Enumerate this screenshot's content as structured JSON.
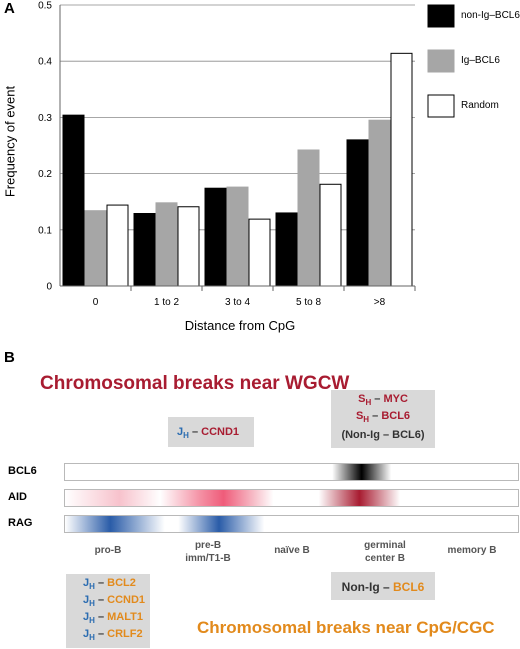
{
  "panelA": {
    "letter": "A",
    "chart_data": {
      "type": "bar",
      "categories": [
        "0",
        "1 to 2",
        "3 to 4",
        "5 to 8",
        ">8"
      ],
      "series": [
        {
          "name": "non-Ig–BCL6",
          "color": "#000000",
          "values": [
            0.304,
            0.129,
            0.174,
            0.13,
            0.26
          ]
        },
        {
          "name": "Ig–BCL6",
          "color": "#a6a6a6",
          "values": [
            0.134,
            0.148,
            0.176,
            0.242,
            0.295
          ]
        },
        {
          "name": "Random",
          "color": "#ffffff",
          "values": [
            0.144,
            0.141,
            0.119,
            0.181,
            0.414
          ]
        }
      ],
      "ylim": [
        0,
        0.5
      ],
      "yticks": [
        "0",
        "0.1",
        "0.2",
        "0.3",
        "0.4",
        "0.5"
      ],
      "xlabel": "Distance from CpG",
      "ylabel": "Frequency of event",
      "grid": true,
      "legend_position": "right"
    }
  },
  "panelB": {
    "letter": "B",
    "title_top": "Chromosomal breaks near WGCW",
    "title_bottom": "Chromosomal breaks near CpG/CGC",
    "tracks": [
      "BCL6",
      "AID",
      "RAG"
    ],
    "stages": [
      "pro-B",
      "pre-B imm/T1-B",
      "naïve B",
      "germinal center B",
      "memory B"
    ],
    "top_box_jh": {
      "jh": "J",
      "sub": "H",
      "dash": " – ",
      "gene": "CCND1"
    },
    "top_box_sh": [
      {
        "s": "S",
        "sub": "H",
        "dash": " – ",
        "gene": "MYC"
      },
      {
        "s": "S",
        "sub": "H",
        "dash": " – ",
        "gene": "BCL6"
      },
      {
        "text": "(Non-Ig – BCL6)"
      }
    ],
    "bottom_box_jh": [
      {
        "jh": "J",
        "sub": "H",
        "dash": " – ",
        "gene": "BCL2"
      },
      {
        "jh": "J",
        "sub": "H",
        "dash": " – ",
        "gene": "CCND1"
      },
      {
        "jh": "J",
        "sub": "H",
        "dash": " – ",
        "gene": "MALT1"
      },
      {
        "jh": "J",
        "sub": "H",
        "dash": " – ",
        "gene": "CRLF2"
      }
    ],
    "bottom_box_nonig": {
      "prefix": "Non-Ig – ",
      "gene": "BCL6"
    },
    "colors": {
      "red": "#a81c31",
      "orange": "#e28a1c",
      "blue": "#2a6cb1"
    }
  }
}
